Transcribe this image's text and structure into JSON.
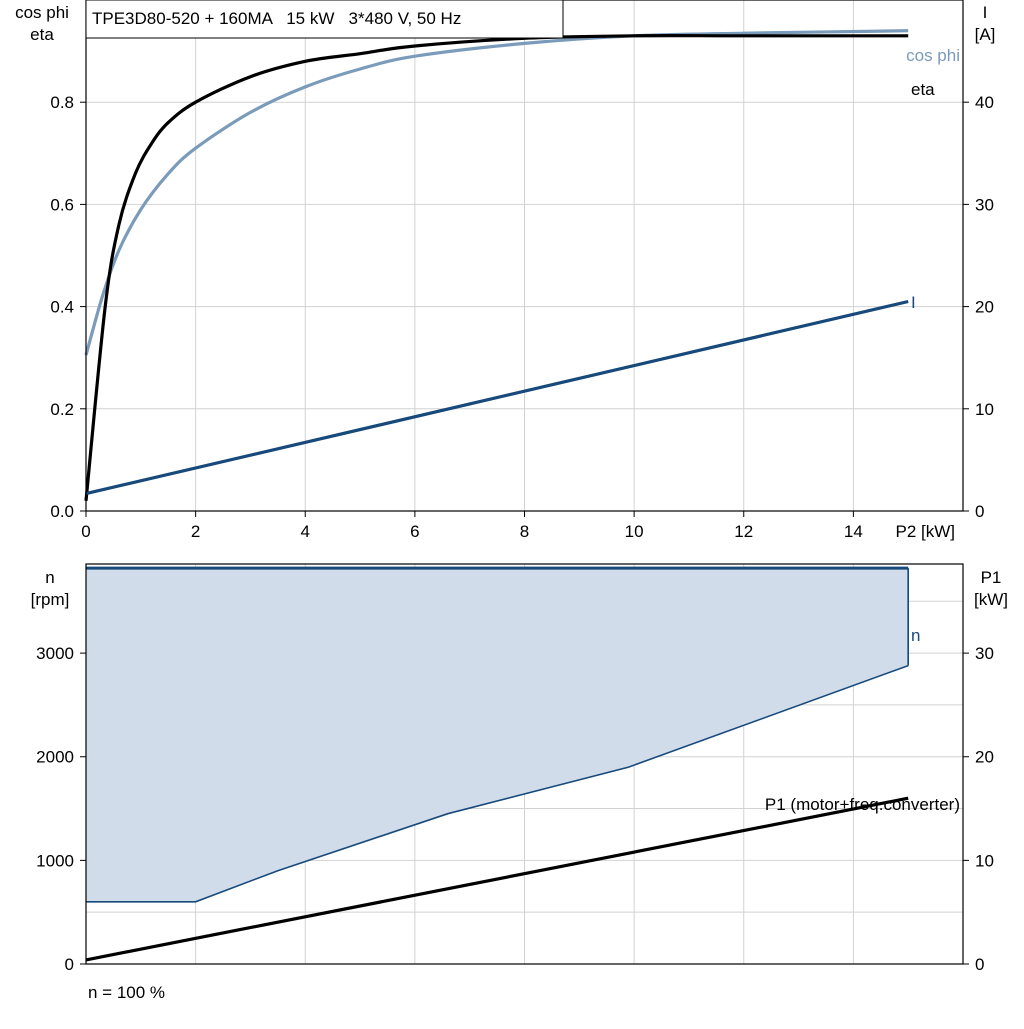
{
  "chart_data": [
    {
      "type": "line",
      "title": "TPE3D80-520 + 160MA   15 kW   3*480 V, 50 Hz",
      "xlabel": "P2 [kW]",
      "ylabel_left": [
        "cos phi",
        "eta"
      ],
      "ylabel_right": [
        "I",
        "[A]"
      ],
      "xlim": [
        0,
        16
      ],
      "ylim_left": [
        0,
        1.0
      ],
      "ylim_right": [
        0,
        50
      ],
      "x_ticks": [
        0,
        2,
        4,
        6,
        8,
        10,
        12,
        14
      ],
      "y_ticks_left": [
        0.0,
        0.2,
        0.4,
        0.6,
        0.8
      ],
      "y_tick_labels_left": [
        "0.0",
        "0.2",
        "0.4",
        "0.6",
        "0.8"
      ],
      "y_ticks_right": [
        0,
        10,
        20,
        30,
        40
      ],
      "grid": true,
      "series": [
        {
          "name": "eta",
          "axis": "left",
          "color": "#000000",
          "x": [
            0,
            0.35,
            0.6,
            0.9,
            1.2,
            1.5,
            2.0,
            3.0,
            4.0,
            5.0,
            6.0,
            8.0,
            10.0,
            12.0,
            15.0
          ],
          "y": [
            0.02,
            0.4,
            0.56,
            0.66,
            0.72,
            0.76,
            0.8,
            0.85,
            0.88,
            0.895,
            0.91,
            0.925,
            0.93,
            0.93,
            0.93
          ]
        },
        {
          "name": "cos phi",
          "axis": "left",
          "color": "#7b9bba",
          "x": [
            0,
            0.3,
            0.6,
            1.0,
            1.5,
            2.0,
            3.0,
            4.0,
            5.0,
            6.0,
            8.0,
            10.0,
            12.0,
            15.0
          ],
          "y": [
            0.305,
            0.42,
            0.51,
            0.59,
            0.66,
            0.71,
            0.78,
            0.83,
            0.865,
            0.89,
            0.915,
            0.93,
            0.935,
            0.94
          ]
        },
        {
          "name": "I",
          "axis": "right",
          "color": "#17497b",
          "x": [
            0,
            15
          ],
          "y": [
            1.7,
            20.5
          ]
        }
      ]
    },
    {
      "type": "area",
      "xlabel": "",
      "ylabel_left": [
        "n",
        "[rpm]"
      ],
      "ylabel_right": [
        "P1",
        "[kW]"
      ],
      "xlim": [
        0,
        16
      ],
      "ylim_left": [
        0,
        3860
      ],
      "ylim_right": [
        0,
        38.6
      ],
      "y_ticks_left": [
        0,
        1000,
        2000,
        3000
      ],
      "y_ticks_right": [
        0,
        10,
        20,
        30
      ],
      "grid": true,
      "footnote": "n = 100 %",
      "series": [
        {
          "name": "n",
          "axis": "left",
          "color": "#17497b",
          "fill": "#d0dce9",
          "upper": {
            "x": [
              0,
              15
            ],
            "y": [
              3820,
              3820
            ]
          },
          "lower": {
            "x": [
              0,
              2.0,
              3.5,
              6.6,
              9.9,
              15.0
            ],
            "y": [
              600,
              600,
              900,
              1450,
              1900,
              2880
            ]
          }
        },
        {
          "name": "P1 (motor+freq.converter)",
          "axis": "right",
          "color": "#000000",
          "x": [
            0,
            15
          ],
          "y": [
            0.4,
            16.0
          ]
        }
      ]
    }
  ]
}
